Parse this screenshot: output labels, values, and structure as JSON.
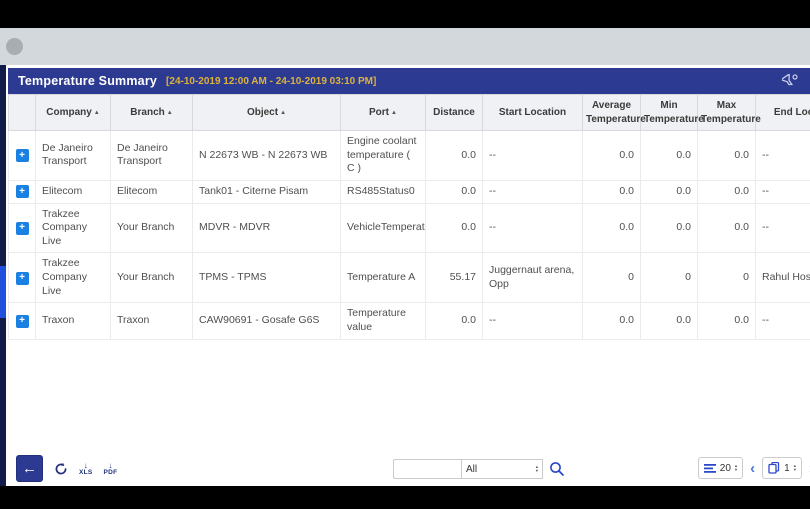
{
  "titlebar": {
    "title": "Temperature Summary",
    "date_range": "[24-10-2019 12:00 AM - 24-10-2019 03:10 PM]"
  },
  "table": {
    "columns": [
      {
        "key": "expand",
        "label": "",
        "sortable": false,
        "align": "center"
      },
      {
        "key": "company",
        "label": "Company",
        "sortable": true,
        "align": "left"
      },
      {
        "key": "branch",
        "label": "Branch",
        "sortable": true,
        "align": "left"
      },
      {
        "key": "object",
        "label": "Object",
        "sortable": true,
        "align": "left"
      },
      {
        "key": "port",
        "label": "Port",
        "sortable": true,
        "align": "left"
      },
      {
        "key": "distance",
        "label": "Distance",
        "sortable": false,
        "align": "right"
      },
      {
        "key": "start_location",
        "label": "Start Location",
        "sortable": false,
        "align": "left"
      },
      {
        "key": "avg_temperature",
        "label": "Average Temperature",
        "sortable": false,
        "align": "right"
      },
      {
        "key": "min_temperature",
        "label": "Min Temperature",
        "sortable": false,
        "align": "right"
      },
      {
        "key": "max_temperature",
        "label": "Max Temperature",
        "sortable": false,
        "align": "right"
      },
      {
        "key": "end_location",
        "label": "End Location",
        "sortable": false,
        "align": "left"
      }
    ],
    "rows": [
      {
        "company": "De Janeiro Transport",
        "branch": "De Janeiro Transport",
        "object": "N 22673 WB - N 22673 WB",
        "port": "Engine coolant temperature ( C )",
        "distance": "0.0",
        "start_location": "--",
        "avg_temperature": "0.0",
        "min_temperature": "0.0",
        "max_temperature": "0.0",
        "end_location": "--"
      },
      {
        "company": "Elitecom",
        "branch": "Elitecom",
        "object": "Tank01 - Citerne Pisam",
        "port": "RS485Status0",
        "distance": "0.0",
        "start_location": "--",
        "avg_temperature": "0.0",
        "min_temperature": "0.0",
        "max_temperature": "0.0",
        "end_location": "--"
      },
      {
        "company": "Trakzee Company Live",
        "branch": "Your Branch",
        "object": "MDVR - MDVR",
        "port": "VehicleTemperature",
        "distance": "0.0",
        "start_location": "--",
        "avg_temperature": "0.0",
        "min_temperature": "0.0",
        "max_temperature": "0.0",
        "end_location": "--"
      },
      {
        "company": "Trakzee Company Live",
        "branch": "Your Branch",
        "object": "TPMS - TPMS",
        "port": "Temperature A",
        "distance": "55.17",
        "start_location": "Juggernaut arena, Opp",
        "avg_temperature": "0",
        "min_temperature": "0",
        "max_temperature": "0",
        "end_location": "Rahul Hospital"
      },
      {
        "company": "Traxon",
        "branch": "Traxon",
        "object": "CAW90691 - Gosafe G6S",
        "port": "Temperature value",
        "distance": "0.0",
        "start_location": "--",
        "avg_temperature": "0.0",
        "min_temperature": "0.0",
        "max_temperature": "0.0",
        "end_location": "--"
      }
    ]
  },
  "toolbar": {
    "back_glyph": "←",
    "xls_label": "XLS",
    "pdf_label": "PDF",
    "download_arrow_glyph": "↓",
    "search_value": "",
    "search_category": "All",
    "stepper_glyph": "▴\n▾"
  },
  "pagination": {
    "page_size": "20",
    "page": "1",
    "prev_glyph": "‹",
    "next_glyph": "›"
  },
  "icons": {
    "sort_asc_glyph": "▲",
    "expand_plus_glyph": "+"
  },
  "colors": {
    "accent_blue": "#2c3a92",
    "highlight_yellow": "#ddb33c",
    "expand_blue": "#1a80e1",
    "icon_navy": "#23317f"
  }
}
